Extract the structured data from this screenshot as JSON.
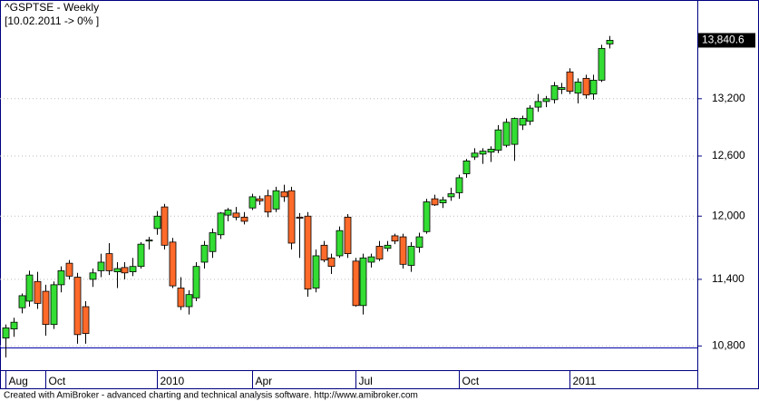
{
  "chart_data": {
    "type": "candlestick",
    "title": "^GSPTSE - Weekly",
    "subtitle": "[10.02.2011 -> 0% ]",
    "footer": "Created with AmiBroker - advanced charting and technical analysis software. http://www.amibroker.com",
    "categories": [
      "Aug",
      null,
      null,
      null,
      null,
      "Oct",
      null,
      null,
      null,
      null,
      null,
      null,
      null,
      null,
      null,
      null,
      null,
      null,
      null,
      "2010",
      null,
      null,
      null,
      null,
      null,
      null,
      null,
      null,
      null,
      null,
      null,
      "Apr",
      null,
      null,
      null,
      null,
      null,
      null,
      null,
      null,
      null,
      null,
      null,
      null,
      "Jul",
      null,
      null,
      null,
      null,
      null,
      null,
      null,
      null,
      null,
      null,
      null,
      null,
      "Oct",
      null,
      null,
      null,
      null,
      null,
      null,
      null,
      null,
      null,
      null,
      null,
      null,
      null,
      "2011",
      null,
      null,
      null,
      null,
      null
    ],
    "open": [
      10870,
      10950,
      11140,
      11200,
      11380,
      11290,
      10990,
      11350,
      11550,
      11420,
      11150,
      11400,
      11480,
      11640,
      11470,
      11510,
      11470,
      11520,
      11760,
      11880,
      12090,
      11750,
      11320,
      11150,
      11230,
      11560,
      11660,
      11820,
      12010,
      12030,
      11990,
      12080,
      12170,
      12200,
      12070,
      12240,
      12250,
      11990,
      12000,
      11320,
      11720,
      11600,
      11620,
      11990,
      11570,
      11160,
      11560,
      11710,
      11690,
      11810,
      11800,
      11530,
      11700,
      11850,
      12170,
      12130,
      12190,
      12230,
      12420,
      12590,
      12620,
      12640,
      12660,
      12710,
      12720,
      12920,
      12960,
      13110,
      13170,
      13190,
      13300,
      13490,
      13260,
      13420,
      13250,
      13400,
      13800
    ],
    "high": [
      10990,
      11050,
      11270,
      11480,
      11470,
      11350,
      11380,
      11520,
      11580,
      11460,
      11200,
      11500,
      11640,
      11740,
      11560,
      11560,
      11600,
      11750,
      11800,
      12050,
      12120,
      11790,
      11420,
      11300,
      11560,
      11760,
      11880,
      12040,
      12080,
      12090,
      12040,
      12220,
      12200,
      12260,
      12290,
      12310,
      12290,
      12030,
      12040,
      11680,
      11760,
      11640,
      11900,
      12020,
      11600,
      11640,
      11640,
      11760,
      11760,
      11830,
      11830,
      11750,
      11840,
      12170,
      12210,
      12190,
      12280,
      12410,
      12570,
      12680,
      12680,
      12700,
      12920,
      12990,
      13000,
      13020,
      13130,
      13250,
      13230,
      13380,
      13370,
      13530,
      13420,
      13460,
      13460,
      13790,
      13890
    ],
    "low": [
      10700,
      10880,
      11090,
      11150,
      11130,
      10890,
      10950,
      11280,
      11400,
      10820,
      10820,
      11330,
      11420,
      11440,
      11320,
      11400,
      11430,
      11500,
      11680,
      11820,
      11680,
      11320,
      11120,
      11080,
      11200,
      11500,
      11600,
      11780,
      11950,
      11960,
      11920,
      12060,
      12110,
      11990,
      12040,
      12140,
      11680,
      11600,
      11240,
      11280,
      11560,
      11450,
      11600,
      11600,
      11150,
      11080,
      11510,
      11570,
      11660,
      11730,
      11500,
      11470,
      11650,
      11830,
      12100,
      12080,
      12150,
      12170,
      12380,
      12560,
      12520,
      12540,
      12630,
      12690,
      12550,
      12870,
      12920,
      13060,
      13110,
      13150,
      13250,
      13250,
      13150,
      13200,
      13190,
      13380,
      13750
    ],
    "close": [
      10960,
      11010,
      11250,
      11440,
      11180,
      10990,
      11350,
      11480,
      11430,
      10900,
      10910,
      11460,
      11560,
      11480,
      11500,
      11460,
      11520,
      11730,
      11770,
      12000,
      11720,
      11340,
      11150,
      11260,
      11520,
      11720,
      11840,
      12030,
      12060,
      11990,
      11950,
      12190,
      12150,
      12040,
      12250,
      12190,
      11740,
      11980,
      11310,
      11620,
      11580,
      11520,
      11860,
      11640,
      11160,
      11600,
      11610,
      11590,
      11720,
      11760,
      11540,
      11710,
      11800,
      12140,
      12110,
      12160,
      12220,
      12380,
      12550,
      12630,
      12650,
      12670,
      12870,
      12950,
      12990,
      12990,
      13100,
      13170,
      13200,
      13340,
      13320,
      13280,
      13380,
      13240,
      13400,
      13750,
      13840.6
    ],
    "last_close_label": "13,840.6",
    "up_color": "#33dd33",
    "down_color": "#ff6a2a",
    "log_scale": true,
    "grid": true,
    "ylim": [
      10590,
      14280
    ],
    "yticks": [
      {
        "value": 10800,
        "label": "10,800"
      },
      {
        "value": 11400,
        "label": "11,400"
      },
      {
        "value": 12000,
        "label": "12,000"
      },
      {
        "value": 12600,
        "label": "12,600"
      },
      {
        "value": 13200,
        "label": "13,200"
      }
    ]
  }
}
